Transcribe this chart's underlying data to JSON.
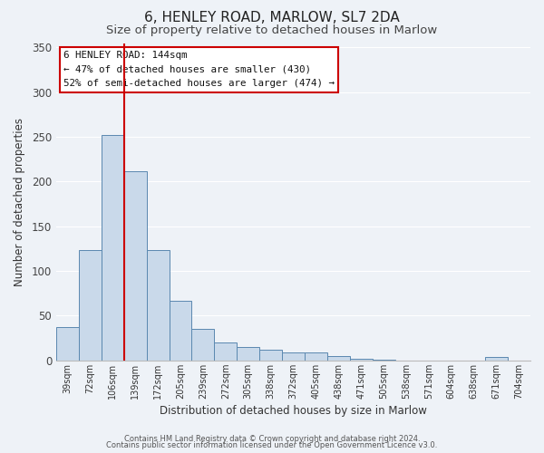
{
  "title": "6, HENLEY ROAD, MARLOW, SL7 2DA",
  "subtitle": "Size of property relative to detached houses in Marlow",
  "xlabel": "Distribution of detached houses by size in Marlow",
  "ylabel": "Number of detached properties",
  "bar_labels": [
    "39sqm",
    "72sqm",
    "106sqm",
    "139sqm",
    "172sqm",
    "205sqm",
    "239sqm",
    "272sqm",
    "305sqm",
    "338sqm",
    "372sqm",
    "405sqm",
    "438sqm",
    "471sqm",
    "505sqm",
    "538sqm",
    "571sqm",
    "604sqm",
    "638sqm",
    "671sqm",
    "704sqm"
  ],
  "bar_values": [
    37,
    123,
    252,
    212,
    123,
    67,
    35,
    20,
    15,
    12,
    9,
    9,
    5,
    2,
    1,
    0,
    0,
    0,
    0,
    4,
    0
  ],
  "bar_color": "#c9d9ea",
  "bar_edge_color": "#5a88b0",
  "vline_x_index": 3,
  "vline_color": "#cc0000",
  "ylim": [
    0,
    355
  ],
  "yticks": [
    0,
    50,
    100,
    150,
    200,
    250,
    300,
    350
  ],
  "annotation_title": "6 HENLEY ROAD: 144sqm",
  "annotation_line1": "← 47% of detached houses are smaller (430)",
  "annotation_line2": "52% of semi-detached houses are larger (474) →",
  "annotation_box_color": "#ffffff",
  "annotation_box_edge": "#cc0000",
  "footer1": "Contains HM Land Registry data © Crown copyright and database right 2024.",
  "footer2": "Contains public sector information licensed under the Open Government Licence v3.0.",
  "background_color": "#eef2f7",
  "plot_background": "#eef2f7",
  "grid_color": "#ffffff",
  "title_fontsize": 11,
  "subtitle_fontsize": 9.5
}
